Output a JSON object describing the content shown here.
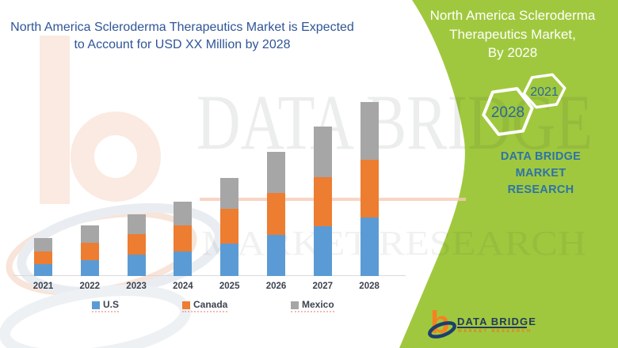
{
  "theme": {
    "brand_green": "#A0C83E",
    "headline_blue": "#2F5597",
    "panel_text_blue": "#2E73A8",
    "hexagon_number_blue": "#2B6898",
    "footer_navy": "#253A5C",
    "footer_orange": "#E87722"
  },
  "left_header": {
    "line1": "North America Scleroderma Therapeutics Market is Expected",
    "line2": "to Account for USD XX Million by 2028"
  },
  "right_panel": {
    "title_line1": "North America Scleroderma",
    "title_line2": "Therapeutics Market,",
    "title_line3": "By 2028",
    "hexagon_small_label": "2021",
    "hexagon_large_label": "2028",
    "brand_line1": "DATA BRIDGE MARKET",
    "brand_line2": "RESEARCH"
  },
  "watermark": {
    "big_text": "DATA BRIDGE",
    "sub_text": "MARKET RESEARCH"
  },
  "footer_logo": {
    "brand": "DATA BRIDGE",
    "sub": "MARKET RESEARCH"
  },
  "chart_data": {
    "type": "bar",
    "stacked": true,
    "title": "North America Scleroderma Therapeutics Market is Expected to Account for USD XX Million by 2028",
    "xlabel": "",
    "ylabel": "",
    "categories": [
      "2021",
      "2022",
      "2023",
      "2024",
      "2025",
      "2026",
      "2027",
      "2028"
    ],
    "series": [
      {
        "name": "U.S",
        "color": "#5B9BD5",
        "values": [
          15,
          20,
          27,
          31,
          41,
          52,
          63,
          74
        ]
      },
      {
        "name": "Canada",
        "color": "#ED7D31",
        "values": [
          16,
          22,
          26,
          33,
          44,
          53,
          62,
          73
        ]
      },
      {
        "name": "Mexico",
        "color": "#A6A6A6",
        "values": [
          17,
          22,
          25,
          30,
          39,
          52,
          64,
          73
        ]
      }
    ],
    "totals": [
      48,
      64,
      78,
      94,
      124,
      157,
      189,
      220
    ],
    "value_note": "Y-axis is unlabeled in source (USD XX Million); values are relative estimates proportional to bar heights",
    "ylim": [
      0,
      230
    ],
    "grid": false,
    "legend_position": "bottom"
  }
}
